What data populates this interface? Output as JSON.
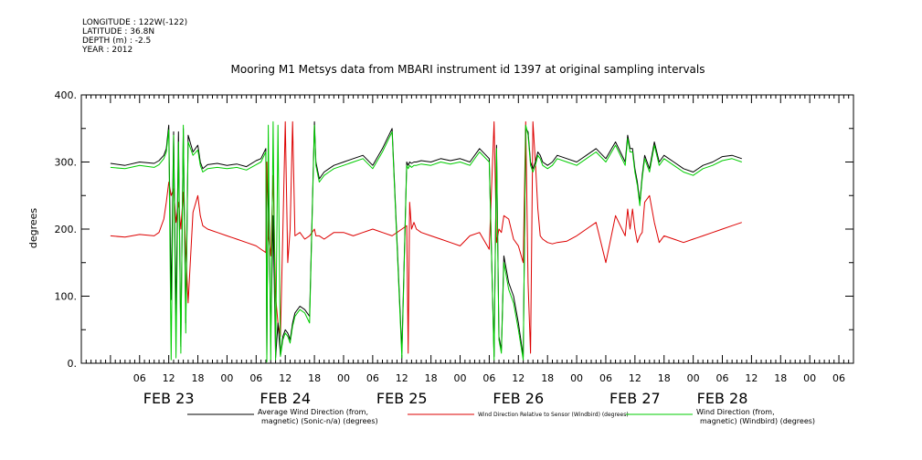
{
  "meta": {
    "longitude": "LONGITUDE : 122W(-122)",
    "latitude": "LATITUDE : 36.8N",
    "depth": "DEPTH (m) : -2.5",
    "year": "YEAR : 2012"
  },
  "chart_data": {
    "type": "line",
    "title": "Mooring M1 Metsys data from MBARI instrument id 1397 at original sampling intervals",
    "ylabel": "degrees",
    "xlabel": "",
    "ylim": [
      0,
      400
    ],
    "yticks": [
      "0.",
      "100.",
      "200.",
      "300.",
      "400."
    ],
    "xlim": [
      0,
      143
    ],
    "hour_ticks": [
      {
        "x": 6,
        "label": "06"
      },
      {
        "x": 12,
        "label": "12"
      },
      {
        "x": 18,
        "label": "18"
      },
      {
        "x": 24,
        "label": "00"
      },
      {
        "x": 30,
        "label": "06"
      },
      {
        "x": 36,
        "label": "12"
      },
      {
        "x": 42,
        "label": "18"
      },
      {
        "x": 48,
        "label": "00"
      },
      {
        "x": 54,
        "label": "06"
      },
      {
        "x": 60,
        "label": "12"
      },
      {
        "x": 66,
        "label": "18"
      },
      {
        "x": 72,
        "label": "00"
      },
      {
        "x": 78,
        "label": "06"
      },
      {
        "x": 84,
        "label": "12"
      },
      {
        "x": 90,
        "label": "18"
      },
      {
        "x": 96,
        "label": "00"
      },
      {
        "x": 102,
        "label": "06"
      },
      {
        "x": 108,
        "label": "12"
      },
      {
        "x": 114,
        "label": "18"
      },
      {
        "x": 120,
        "label": "00"
      },
      {
        "x": 126,
        "label": "06"
      },
      {
        "x": 132,
        "label": "12"
      },
      {
        "x": 138,
        "label": "18"
      },
      {
        "x": 144,
        "label": "00"
      },
      {
        "x": 150,
        "label": "06"
      }
    ],
    "day_labels": [
      {
        "x": 12,
        "label": "FEB 23"
      },
      {
        "x": 36,
        "label": "FEB 24"
      },
      {
        "x": 60,
        "label": "FEB 25"
      },
      {
        "x": 84,
        "label": "FEB 26"
      },
      {
        "x": 108,
        "label": "FEB 27"
      },
      {
        "x": 126,
        "label": "FEB 28"
      }
    ],
    "series": [
      {
        "name": "Average Wind Direction (from, magnetic) (Sonic-n/a) (degrees)",
        "color": "#000000",
        "x": [
          0,
          3,
          6,
          9,
          10,
          11,
          11.5,
          12,
          12.5,
          13,
          13.5,
          14,
          14.5,
          15,
          15.5,
          16,
          17,
          18,
          18.5,
          19,
          20,
          22,
          24,
          26,
          28,
          30,
          31,
          32,
          32.2,
          32.5,
          33,
          33.5,
          34,
          34.5,
          35,
          35.5,
          36,
          36.5,
          37,
          37.5,
          38,
          39,
          40,
          41,
          42,
          42.3,
          43,
          44,
          45,
          46,
          48,
          50,
          52,
          54,
          56,
          58,
          60,
          61,
          61.3,
          61.6,
          62,
          62.5,
          63,
          64,
          66,
          68,
          70,
          72,
          74,
          76,
          78,
          79,
          79.5,
          80,
          80.5,
          81,
          82,
          83,
          84,
          85,
          85.5,
          86,
          86.5,
          87,
          87.5,
          88,
          88.5,
          89,
          90,
          91,
          92,
          94,
          96,
          98,
          100,
          102,
          104,
          106,
          106.5,
          107,
          107.5,
          108,
          108.5,
          109,
          109.5,
          110,
          111,
          112,
          113,
          114,
          116,
          118,
          120,
          122,
          124,
          126,
          128,
          130
        ],
        "values": [
          298,
          295,
          300,
          298,
          302,
          310,
          320,
          355,
          95,
          345,
          70,
          345,
          25,
          350,
          60,
          340,
          315,
          325,
          300,
          290,
          296,
          298,
          295,
          297,
          293,
          302,
          305,
          320,
          10,
          300,
          40,
          220,
          8,
          60,
          12,
          40,
          50,
          45,
          35,
          60,
          75,
          85,
          80,
          70,
          360,
          300,
          275,
          285,
          290,
          295,
          300,
          305,
          310,
          295,
          320,
          350,
          18,
          300,
          295,
          300,
          298,
          300,
          300,
          302,
          300,
          305,
          302,
          305,
          300,
          320,
          305,
          10,
          325,
          40,
          20,
          160,
          120,
          100,
          60,
          10,
          350,
          345,
          300,
          290,
          300,
          315,
          310,
          300,
          295,
          300,
          310,
          305,
          300,
          310,
          320,
          305,
          330,
          300,
          340,
          320,
          320,
          290,
          270,
          240,
          280,
          310,
          290,
          330,
          300,
          310,
          300,
          290,
          285,
          295,
          300,
          308,
          310,
          305
        ]
      },
      {
        "name": "Wind Direction Relative to Sensor (Windbird) (degrees)",
        "color": "#dd0000",
        "x": [
          0,
          3,
          6,
          9,
          10,
          11,
          11.5,
          12,
          12.5,
          13,
          13.5,
          14,
          14.5,
          15,
          15.5,
          16,
          17,
          18,
          18.5,
          19,
          20,
          22,
          24,
          26,
          28,
          30,
          31,
          32,
          32.2,
          32.5,
          33,
          33.5,
          34,
          34.5,
          35,
          35.5,
          36,
          36.5,
          37,
          37.5,
          38,
          39,
          40,
          41,
          42,
          42.3,
          43,
          44,
          45,
          46,
          48,
          50,
          52,
          54,
          56,
          58,
          60,
          61,
          61.3,
          61.6,
          62,
          62.5,
          63,
          64,
          66,
          68,
          70,
          72,
          74,
          76,
          78,
          79,
          79.5,
          80,
          80.5,
          81,
          82,
          83,
          84,
          85,
          85.5,
          86,
          86.5,
          87,
          87.5,
          88,
          88.5,
          89,
          90,
          91,
          92,
          94,
          96,
          98,
          100,
          102,
          104,
          106,
          106.5,
          107,
          107.5,
          108,
          108.5,
          109,
          109.5,
          110,
          111,
          112,
          113,
          114,
          116,
          118,
          120,
          122,
          124,
          126,
          128,
          130
        ],
        "values": [
          190,
          188,
          192,
          190,
          195,
          215,
          240,
          270,
          250,
          260,
          210,
          240,
          200,
          255,
          170,
          90,
          225,
          250,
          220,
          205,
          200,
          195,
          190,
          185,
          180,
          175,
          170,
          165,
          300,
          190,
          160,
          280,
          100,
          60,
          40,
          200,
          360,
          150,
          200,
          360,
          190,
          195,
          185,
          190,
          200,
          190,
          190,
          185,
          190,
          195,
          195,
          190,
          195,
          200,
          195,
          190,
          200,
          205,
          15,
          240,
          200,
          210,
          200,
          195,
          190,
          185,
          180,
          175,
          190,
          195,
          170,
          360,
          180,
          200,
          195,
          220,
          215,
          185,
          175,
          150,
          360,
          120,
          15,
          360,
          300,
          230,
          190,
          185,
          180,
          178,
          180,
          182,
          190,
          200,
          210,
          150,
          220,
          190,
          230,
          200,
          230,
          200,
          180,
          190,
          195,
          240,
          250,
          210,
          180,
          190,
          185,
          180,
          185,
          190,
          195,
          200,
          205,
          210
        ]
      },
      {
        "name": "Wind Direction (from, magnetic) (Windbird) (degrees)",
        "color": "#00cc00",
        "x": [
          0,
          3,
          6,
          9,
          10,
          11,
          11.5,
          12,
          12.5,
          13,
          13.5,
          14,
          14.5,
          15,
          15.5,
          16,
          17,
          18,
          18.5,
          19,
          20,
          22,
          24,
          26,
          28,
          30,
          31,
          32,
          32.2,
          32.5,
          33,
          33.5,
          34,
          34.5,
          35,
          35.5,
          36,
          36.5,
          37,
          37.5,
          38,
          39,
          40,
          41,
          42,
          42.3,
          43,
          44,
          45,
          46,
          48,
          50,
          52,
          54,
          56,
          58,
          60,
          61,
          61.3,
          61.6,
          62,
          62.5,
          63,
          64,
          66,
          68,
          70,
          72,
          74,
          76,
          78,
          79,
          79.5,
          80,
          80.5,
          81,
          82,
          83,
          84,
          85,
          85.5,
          86,
          86.5,
          87,
          87.5,
          88,
          88.5,
          89,
          90,
          91,
          92,
          94,
          96,
          98,
          100,
          102,
          104,
          106,
          106.5,
          107,
          107.5,
          108,
          108.5,
          109,
          109.5,
          110,
          111,
          112,
          113,
          114,
          116,
          118,
          120,
          122,
          124,
          126,
          128,
          130
        ],
        "values": [
          292,
          290,
          295,
          292,
          296,
          305,
          315,
          348,
          5,
          340,
          8,
          330,
          15,
          355,
          45,
          330,
          310,
          318,
          295,
          285,
          290,
          292,
          290,
          292,
          288,
          296,
          300,
          315,
          2,
          355,
          5,
          360,
          5,
          355,
          10,
          35,
          45,
          40,
          30,
          55,
          70,
          80,
          75,
          60,
          355,
          295,
          270,
          280,
          285,
          290,
          295,
          300,
          305,
          290,
          315,
          345,
          8,
          295,
          290,
          295,
          292,
          295,
          295,
          297,
          295,
          300,
          297,
          300,
          295,
          315,
          300,
          5,
          320,
          35,
          15,
          150,
          110,
          90,
          50,
          5,
          355,
          340,
          295,
          285,
          295,
          310,
          305,
          295,
          290,
          295,
          305,
          300,
          295,
          305,
          315,
          300,
          325,
          295,
          335,
          315,
          315,
          285,
          265,
          235,
          275,
          305,
          285,
          325,
          295,
          305,
          295,
          285,
          280,
          290,
          295,
          302,
          305,
          300
        ]
      }
    ],
    "legend": [
      {
        "line1": "Average Wind Direction (from,",
        "line2": "magnetic) (Sonic-n/a) (degrees)",
        "color": "#000000"
      },
      {
        "line1": "Wind Direction Relative to Sensor (Windbird) (degrees)",
        "line2": "",
        "color": "#dd0000"
      },
      {
        "line1": "Wind Direction (from,",
        "line2": "magnetic) (Windbird) (degrees)",
        "color": "#00cc00"
      }
    ],
    "legend_position": "bottom",
    "grid": false
  }
}
